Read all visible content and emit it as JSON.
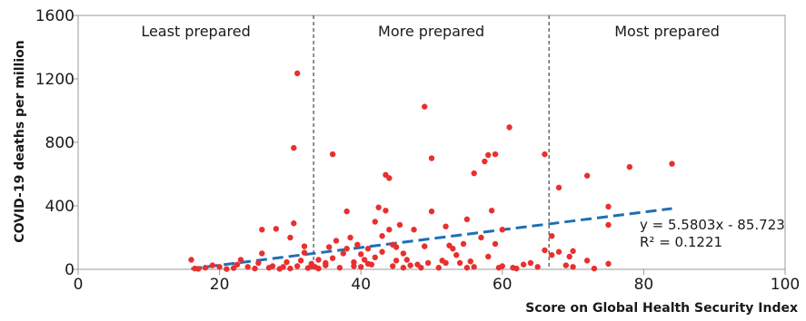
{
  "chart_data": {
    "type": "scatter",
    "xlabel": "Score on Global Health Security Index",
    "ylabel": "COVID-19 deaths per million",
    "xlim": [
      0,
      100
    ],
    "ylim": [
      0,
      1600
    ],
    "xticks": [
      "0",
      "20",
      "40",
      "60",
      "80",
      "100"
    ],
    "yticks": [
      "0",
      "400",
      "800",
      "1200",
      "1600"
    ],
    "grid": false,
    "regions": [
      {
        "label": "Least prepared",
        "from": 0,
        "to": 33.3
      },
      {
        "label": "More prepared",
        "from": 33.3,
        "to": 66.6
      },
      {
        "label": "Most prepared",
        "from": 66.6,
        "to": 100
      }
    ],
    "dividers": [
      33.3,
      66.6
    ],
    "trendline": {
      "slope": 5.5803,
      "intercept": -85.723,
      "x_range": [
        16,
        84
      ],
      "equation": "y = 5.5803x - 85.723",
      "r2": "R² = 0.1221"
    },
    "colors": {
      "points": "#e8302f",
      "trendline": "#1f6fb2",
      "frame": "#999999",
      "divider": "#222222"
    },
    "points": [
      [
        16,
        60
      ],
      [
        16.5,
        5
      ],
      [
        17,
        3
      ],
      [
        18,
        10
      ],
      [
        19,
        25
      ],
      [
        20,
        15
      ],
      [
        21,
        2
      ],
      [
        22,
        8
      ],
      [
        22.5,
        30
      ],
      [
        23,
        60
      ],
      [
        24,
        15
      ],
      [
        25,
        5
      ],
      [
        25.5,
        40
      ],
      [
        26,
        100
      ],
      [
        26,
        250
      ],
      [
        27,
        10
      ],
      [
        27.5,
        20
      ],
      [
        28,
        255
      ],
      [
        28.5,
        3
      ],
      [
        29,
        15
      ],
      [
        29.5,
        45
      ],
      [
        30,
        5
      ],
      [
        30,
        200
      ],
      [
        30.5,
        290
      ],
      [
        30.5,
        765
      ],
      [
        31,
        1235
      ],
      [
        31,
        20
      ],
      [
        31.5,
        55
      ],
      [
        32,
        145
      ],
      [
        32,
        105
      ],
      [
        32.5,
        8
      ],
      [
        33,
        35
      ],
      [
        33,
        20
      ],
      [
        33.5,
        15
      ],
      [
        34,
        60
      ],
      [
        34,
        5
      ],
      [
        35,
        40
      ],
      [
        35,
        25
      ],
      [
        35.5,
        140
      ],
      [
        36,
        725
      ],
      [
        36,
        70
      ],
      [
        36.5,
        180
      ],
      [
        37,
        10
      ],
      [
        37.5,
        100
      ],
      [
        38,
        365
      ],
      [
        38,
        130
      ],
      [
        38.5,
        200
      ],
      [
        39,
        20
      ],
      [
        39,
        45
      ],
      [
        39.5,
        155
      ],
      [
        40,
        15
      ],
      [
        40,
        95
      ],
      [
        40.5,
        60
      ],
      [
        41,
        35
      ],
      [
        41,
        130
      ],
      [
        41.5,
        30
      ],
      [
        42,
        300
      ],
      [
        42,
        75
      ],
      [
        42.5,
        390
      ],
      [
        43,
        210
      ],
      [
        43,
        110
      ],
      [
        43.5,
        595
      ],
      [
        43.5,
        370
      ],
      [
        44,
        575
      ],
      [
        44,
        250
      ],
      [
        44.5,
        155
      ],
      [
        44.5,
        20
      ],
      [
        45,
        55
      ],
      [
        45,
        140
      ],
      [
        45.5,
        280
      ],
      [
        46,
        100
      ],
      [
        46,
        10
      ],
      [
        46.5,
        60
      ],
      [
        47,
        25
      ],
      [
        47.5,
        250
      ],
      [
        48,
        30
      ],
      [
        48.5,
        10
      ],
      [
        49,
        1025
      ],
      [
        49,
        145
      ],
      [
        49.5,
        40
      ],
      [
        50,
        700
      ],
      [
        50,
        365
      ],
      [
        51,
        10
      ],
      [
        51.5,
        55
      ],
      [
        52,
        40
      ],
      [
        52,
        270
      ],
      [
        52.5,
        150
      ],
      [
        53,
        130
      ],
      [
        53.5,
        90
      ],
      [
        54,
        40
      ],
      [
        54.5,
        160
      ],
      [
        55,
        315
      ],
      [
        55,
        10
      ],
      [
        55.5,
        50
      ],
      [
        56,
        15
      ],
      [
        56,
        605
      ],
      [
        57,
        200
      ],
      [
        57.5,
        680
      ],
      [
        58,
        720
      ],
      [
        58,
        80
      ],
      [
        58.5,
        370
      ],
      [
        59,
        725
      ],
      [
        59,
        160
      ],
      [
        59.5,
        10
      ],
      [
        60,
        20
      ],
      [
        60,
        250
      ],
      [
        61,
        895
      ],
      [
        61.5,
        10
      ],
      [
        62,
        5
      ],
      [
        63,
        30
      ],
      [
        64,
        40
      ],
      [
        65,
        15
      ],
      [
        66,
        725
      ],
      [
        66,
        120
      ],
      [
        67,
        90
      ],
      [
        67,
        210
      ],
      [
        68,
        515
      ],
      [
        68,
        110
      ],
      [
        69,
        25
      ],
      [
        69.5,
        80
      ],
      [
        70,
        115
      ],
      [
        70,
        15
      ],
      [
        72,
        590
      ],
      [
        72,
        55
      ],
      [
        73,
        5
      ],
      [
        75,
        280
      ],
      [
        75,
        395
      ],
      [
        75,
        35
      ],
      [
        78,
        645
      ],
      [
        84,
        665
      ]
    ]
  }
}
